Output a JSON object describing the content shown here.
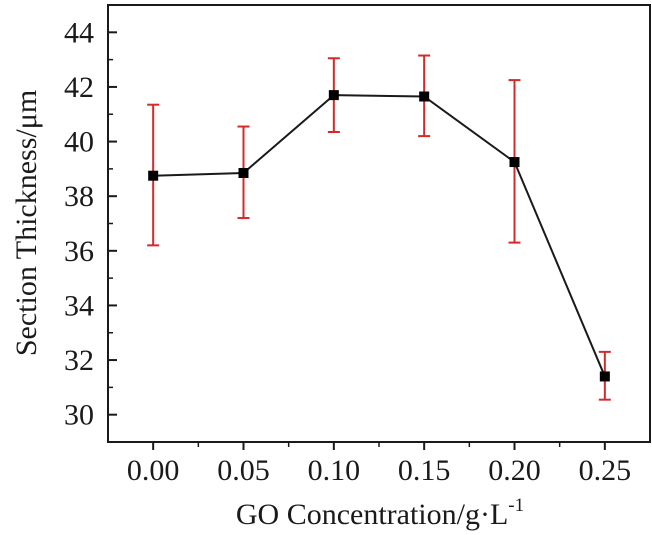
{
  "chart_data": {
    "type": "line",
    "title": "",
    "xlabel": "GO Concentration/g·L",
    "xlabel_superscript": "-1",
    "ylabel": "Section Thickness/μm",
    "x": [
      0.0,
      0.05,
      0.1,
      0.15,
      0.2,
      0.25
    ],
    "x_tick_labels": [
      "0.00",
      "0.05",
      "0.10",
      "0.15",
      "0.20",
      "0.25"
    ],
    "xlim": [
      -0.025,
      0.275
    ],
    "y_ticks": [
      30,
      32,
      34,
      36,
      38,
      40,
      42,
      44
    ],
    "y_tick_labels": [
      "30",
      "32",
      "34",
      "36",
      "38",
      "40",
      "42",
      "44"
    ],
    "ylim": [
      29,
      45
    ],
    "series": [
      {
        "name": "Section Thickness",
        "values": [
          38.75,
          38.85,
          41.7,
          41.65,
          39.25,
          31.4
        ],
        "err_low": [
          36.2,
          37.2,
          40.35,
          40.2,
          36.3,
          30.55
        ],
        "err_high": [
          41.35,
          40.55,
          43.05,
          43.15,
          42.25,
          32.3
        ]
      }
    ],
    "colors": {
      "line": "#1a1a1a",
      "marker": "#000000",
      "error_bar": "#d42a2a",
      "axis": "#1a1a1a"
    },
    "grid": false,
    "legend": "none"
  }
}
